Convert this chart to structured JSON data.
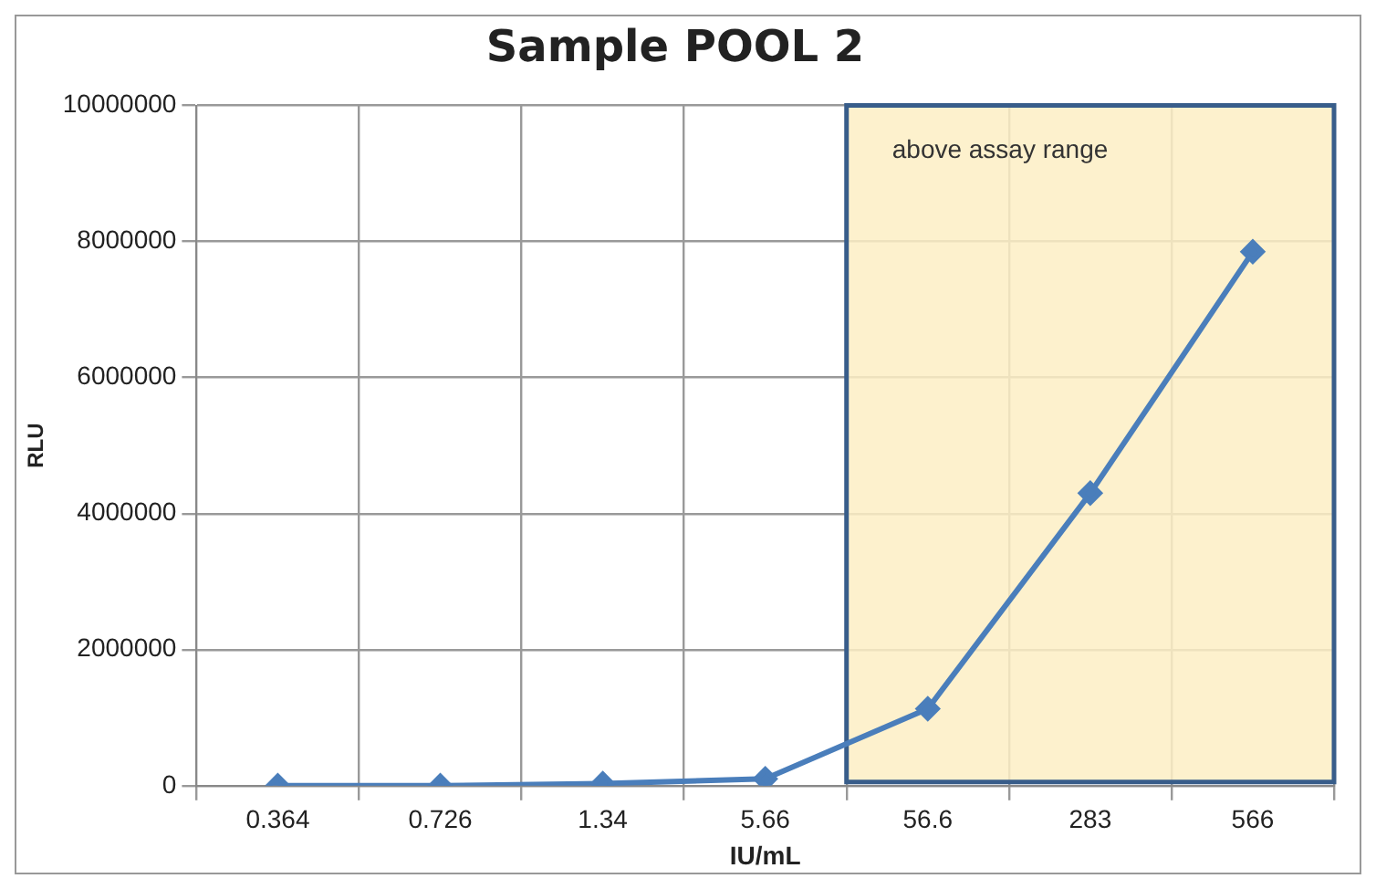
{
  "chart_data": {
    "type": "line",
    "title": "Sample POOL 2",
    "xlabel": "IU/mL",
    "ylabel": "RLU",
    "categories": [
      "0.364",
      "0.726",
      "1.34",
      "5.66",
      "56.6",
      "283",
      "566"
    ],
    "series": [
      {
        "color": "#4a7ebb",
        "values": [
          0,
          0,
          30000,
          100000,
          1130000,
          4300000,
          7850000
        ]
      }
    ],
    "ylim": [
      0,
      10000000
    ],
    "yticks": [
      0,
      2000000,
      4000000,
      6000000,
      8000000,
      10000000
    ],
    "bands": [
      {
        "axis": "x",
        "from": "56.6",
        "to": "566",
        "label": "above assay range",
        "color": "#fdefc4"
      }
    ],
    "grid": true,
    "marker": "diamond",
    "line_style": "solid",
    "legend": false
  }
}
